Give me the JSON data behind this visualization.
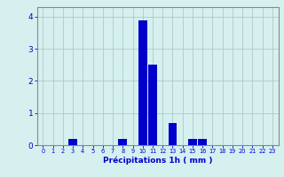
{
  "categories": [
    0,
    1,
    2,
    3,
    4,
    5,
    6,
    7,
    8,
    9,
    10,
    11,
    12,
    13,
    14,
    15,
    16,
    17,
    18,
    19,
    20,
    21,
    22,
    23
  ],
  "values": [
    0,
    0,
    0,
    0.2,
    0,
    0,
    0,
    0,
    0.2,
    0,
    3.9,
    2.5,
    0,
    0.7,
    0,
    0.2,
    0.2,
    0,
    0,
    0,
    0,
    0,
    0,
    0
  ],
  "bar_color": "#0000cc",
  "background_color": "#d6f0f0",
  "grid_color": "#b0c8c8",
  "xlabel": "Précipitations 1h ( mm )",
  "xlabel_color": "#0000cc",
  "tick_color": "#0000cc",
  "axis_color": "#888888",
  "ylim": [
    0,
    4.3
  ],
  "yticks": [
    0,
    1,
    2,
    3,
    4
  ],
  "bar_width": 0.85,
  "figwidth": 3.2,
  "figheight": 2.0,
  "dpi": 100
}
